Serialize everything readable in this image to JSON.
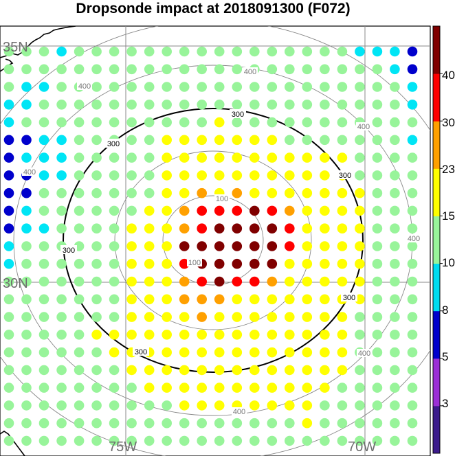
{
  "title": "Dropsonde impact at 2018091300 (F072)",
  "map": {
    "lat_labels": [
      "35N",
      "30N"
    ],
    "lon_labels": [
      "75W",
      "70W"
    ],
    "range_ring_labels": [
      "100",
      "100",
      "400",
      "400",
      "400",
      "400",
      "400",
      "400",
      "400"
    ],
    "bold_ring_labels": [
      "300",
      "300",
      "300",
      "300",
      "300",
      "300"
    ]
  },
  "colorbar": {
    "tick_labels": [
      "40",
      "30",
      "23",
      "15",
      "10",
      "8",
      "5",
      "3"
    ],
    "colors": [
      "#3c1b8c",
      "#9b2fd6",
      "#0000cc",
      "#00dcf0",
      "#98f49a",
      "#ffff00",
      "#ffa000",
      "#ff0000",
      "#800000"
    ],
    "level_order": "bottom-to-top"
  },
  "legend": {
    "classes": [
      {
        "key": "lg",
        "color": "#98f49a"
      },
      {
        "key": "cy",
        "color": "#00e5f5"
      },
      {
        "key": "bl",
        "color": "#0000cc"
      },
      {
        "key": "ye",
        "color": "#ffff00"
      },
      {
        "key": "or",
        "color": "#ffa000"
      },
      {
        "key": "rd",
        "color": "#ff0000"
      },
      {
        "key": "dr",
        "color": "#800000"
      }
    ]
  },
  "points": [
    "lg lg lg cy lg lg lg lg lg lg lg lg lg lg lg lg lg lg lg lg cy cy cy bl",
    "lg lg lg lg lg lg lg lg lg lg lg lg lg lg lg lg lg lg lg lg lg lg cy bl",
    "lg cy cy lg lg lg lg lg lg lg lg lg lg lg lg lg lg lg lg lg lg lg lg cy",
    "cy cy lg lg lg lg lg lg lg lg lg lg lg lg lg lg lg lg lg lg lg lg lg cy",
    "cy lg lg lg lg lg lg lg lg lg lg lg ye lg lg lg lg lg lg lg lg lg lg lg",
    "bl bl cy cy lg lg lg lg lg ye ye ye ye ye ye ye lg lg lg lg lg lg lg cy",
    "bl cy cy cy lg lg lg lg lg ye ye ye ye ye ye ye ye ye ye ye lg lg lg lg",
    "bl bl cy cy lg lg lg lg lg ye ye ye ye ye ye ye ye ye ye ye lg lg lg lg",
    "bl bl lg lg lg lg lg lg lg ye ye or ye or ye ye ye ye ye ye ye lg lg lg",
    "bl cy lg lg lg lg lg lg ye ye or rd rd rd dr rd or ye ye ye ye lg lg lg",
    "bl cy cy lg lg lg lg ye ye ye or rd dr dr dr dr rd ye ye ye ye lg lg lg",
    "cy lg lg lg lg lg lg ye ye ye dr dr dr dr dr dr rd ye ye ye ye lg lg lg",
    "cy lg lg lg lg lg lg ye ye ye rd dr dr dr dr dr ye ye ye ye ye lg lg lg",
    "lg lg lg lg lg lg lg ye ye ye or rd dr rd rd or ye ye ye ye ye lg lg lg",
    "lg lg lg lg lg lg lg ye ye ye or or or ye ye ye ye ye ye ye ye lg lg lg",
    "lg lg lg lg lg lg lg ye ye ye ye or ye ye ye ye ye ye ye ye lg lg lg lg",
    "lg lg lg lg lg ye ye ye ye ye ye ye ye ye ye ye ye ye ye ye lg lg lg lg",
    "lg lg lg lg lg lg ye ye ye ye ye ye ye ye ye ye ye ye ye ye lg lg lg lg",
    "lg lg lg lg lg lg lg ye ye ye ye ye ye ye ye ye ye ye ye ye lg lg lg lg",
    "lg lg lg lg lg lg lg lg ye ye ye ye ye ye ye ye ye ye ye lg lg lg lg lg",
    "lg lg lg lg lg lg lg lg lg lg ye ye ye ye ye ye ye ye lg lg lg lg lg lg",
    "lg lg lg lg lg lg lg lg lg lg lg lg lg lg lg lg lg ye lg lg lg lg lg lg",
    "lg lg lg lg lg lg lg lg lg lg lg lg lg lg lg lg lg lg lg lg lg lg lg lg"
  ]
}
